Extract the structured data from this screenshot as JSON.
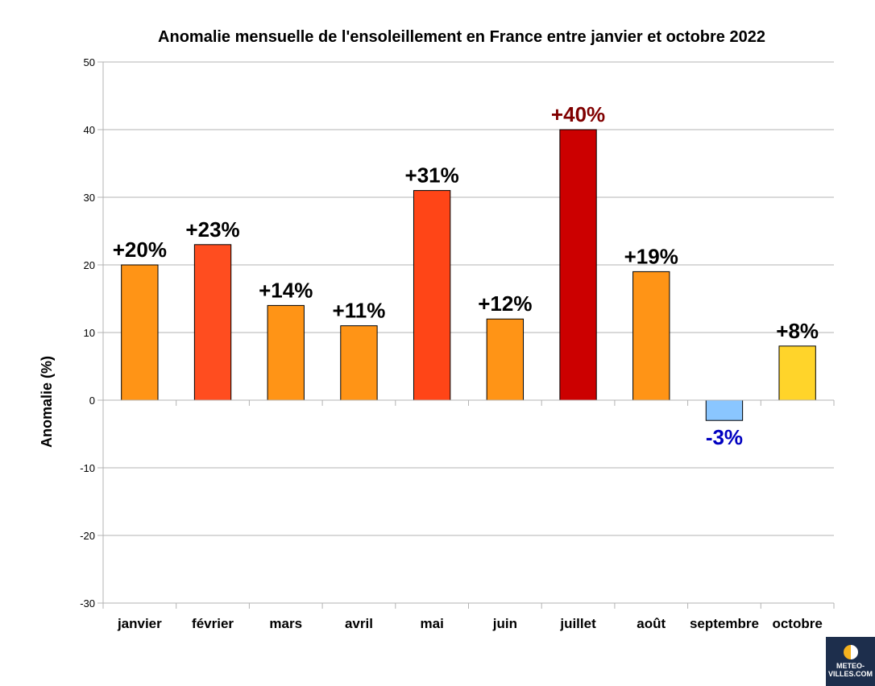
{
  "chart_data": {
    "type": "bar",
    "title": "Anomalie mensuelle de l'ensoleillement en France entre janvier et octobre 2022",
    "xlabel": "",
    "ylabel": "Anomalie (%)",
    "ylim": [
      -30,
      50
    ],
    "yticks": [
      "-30",
      "-20",
      "-10",
      "0",
      "10",
      "20",
      "30",
      "40",
      "50"
    ],
    "grid": true,
    "legend": "none",
    "categories": [
      "janvier",
      "février",
      "mars",
      "avril",
      "mai",
      "juin",
      "juillet",
      "août",
      "septembre",
      "octobre"
    ],
    "values": [
      20,
      23,
      14,
      11,
      31,
      12,
      40,
      19,
      -3,
      8
    ],
    "data_labels": [
      "+20%",
      "+23%",
      "+14%",
      "+11%",
      "+31%",
      "+12%",
      "+40%",
      "+19%",
      "-3%",
      "+8%"
    ],
    "bar_colors": [
      "#ff9416",
      "#ff4d1f",
      "#ff9416",
      "#ff9416",
      "#ff4517",
      "#ff9416",
      "#cc0000",
      "#ff9416",
      "#8ac6ff",
      "#ffd42a"
    ],
    "label_colors": [
      "#000000",
      "#000000",
      "#000000",
      "#000000",
      "#000000",
      "#000000",
      "#800000",
      "#000000",
      "#0000c0",
      "#000000"
    ]
  },
  "logo": {
    "text": "METEO-\nVILLES.COM",
    "icon": "sun-half-icon"
  }
}
